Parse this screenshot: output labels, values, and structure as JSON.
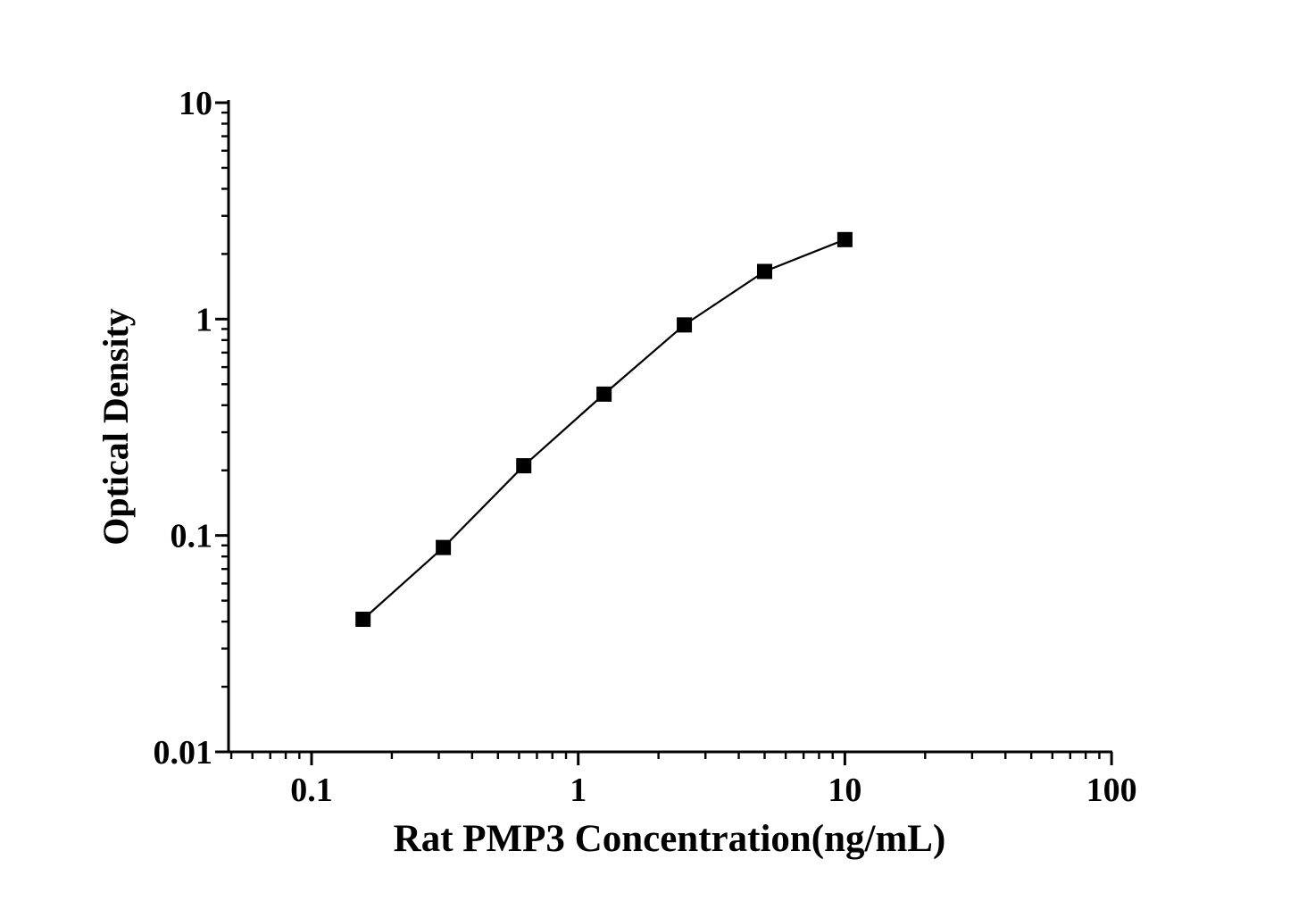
{
  "figure": {
    "background_color": "#ffffff"
  },
  "colors": {
    "axis": "#000000",
    "line": "#000000",
    "marker": "#000000",
    "text": "#000000",
    "background": "#ffffff"
  },
  "chart_data": {
    "type": "line",
    "title": "",
    "xlabel": "Rat PMP3 Concentration(ng/mL)",
    "ylabel": "Optical Density",
    "x_scale": "log",
    "y_scale": "log",
    "xlim": [
      0.0486,
      100
    ],
    "ylim": [
      0.01,
      10
    ],
    "x_ticks": [
      0.1,
      1,
      10,
      100
    ],
    "x_tick_labels": [
      "0.1",
      "1",
      "10",
      "100"
    ],
    "y_ticks": [
      0.01,
      0.1,
      1,
      10
    ],
    "y_tick_labels": [
      "0.01",
      "0.1",
      "1",
      "10"
    ],
    "minor_tick_decades_x": [
      0.01,
      0.1,
      1,
      10
    ],
    "minor_tick_decades_y": [
      0.01,
      0.1,
      1
    ],
    "grid": false,
    "legend": null,
    "series": [
      {
        "name": "standard-curve",
        "marker": "square",
        "marker_color": "#000000",
        "line_color": "#000000",
        "x": [
          0.156,
          0.312,
          0.625,
          1.25,
          2.5,
          5,
          10
        ],
        "y": [
          0.041,
          0.088,
          0.21,
          0.45,
          0.94,
          1.66,
          2.33
        ]
      }
    ]
  }
}
